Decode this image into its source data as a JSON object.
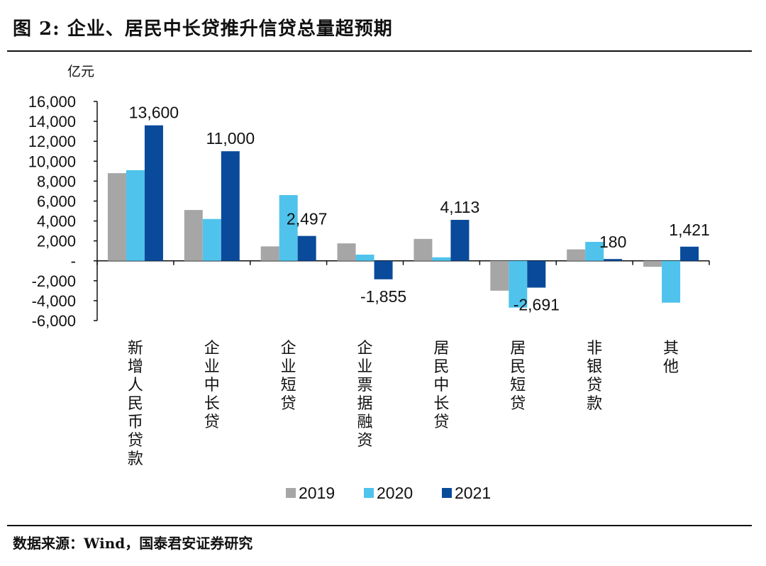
{
  "title": "图 2:  企业、居民中长贷推升信贷总量超预期",
  "source": "数据来源：Wind，国泰君安证券研究",
  "chart_data": {
    "type": "bar",
    "unit_label": "亿元",
    "categories": [
      "新增人民币贷款",
      "企业中长贷",
      "企业短贷",
      "企业票据融资",
      "居民中长贷",
      "居民短贷",
      "非银贷款",
      "其他"
    ],
    "series": [
      {
        "name": "2019",
        "color": "#a6a6a6",
        "values": [
          8800,
          5100,
          1450,
          1750,
          2200,
          -3000,
          1150,
          -600
        ]
      },
      {
        "name": "2020",
        "color": "#4fc3ec",
        "values": [
          9100,
          4200,
          6600,
          620,
          350,
          -4700,
          1900,
          -4200
        ]
      },
      {
        "name": "2021",
        "color": "#0a4a9a",
        "values": [
          13600,
          11000,
          2497,
          -1855,
          4113,
          -2691,
          180,
          1421
        ]
      }
    ],
    "data_labels": [
      {
        "category": "新增人民币贷款",
        "text": "13,600"
      },
      {
        "category": "企业中长贷",
        "text": "11,000"
      },
      {
        "category": "企业短贷",
        "text": "2,497"
      },
      {
        "category": "企业票据融资",
        "text": "-1,855"
      },
      {
        "category": "居民中长贷",
        "text": "4,113"
      },
      {
        "category": "居民短贷",
        "text": "-2,691"
      },
      {
        "category": "非银贷款",
        "text": "180"
      },
      {
        "category": "其他",
        "text": "1,421"
      }
    ],
    "yticks": [
      {
        "value": 16000,
        "label": "16,000"
      },
      {
        "value": 14000,
        "label": "14,000"
      },
      {
        "value": 12000,
        "label": "12,000"
      },
      {
        "value": 10000,
        "label": "10,000"
      },
      {
        "value": 8000,
        "label": "8,000"
      },
      {
        "value": 6000,
        "label": "6,000"
      },
      {
        "value": 4000,
        "label": "4,000"
      },
      {
        "value": 2000,
        "label": "2,000"
      },
      {
        "value": 0,
        "label": "-"
      },
      {
        "value": -2000,
        "label": "-2,000"
      },
      {
        "value": -4000,
        "label": "-4,000"
      },
      {
        "value": -6000,
        "label": "-6,000"
      }
    ],
    "ylim": [
      -6000,
      16000
    ],
    "grid": false,
    "legend_position": "bottom"
  }
}
